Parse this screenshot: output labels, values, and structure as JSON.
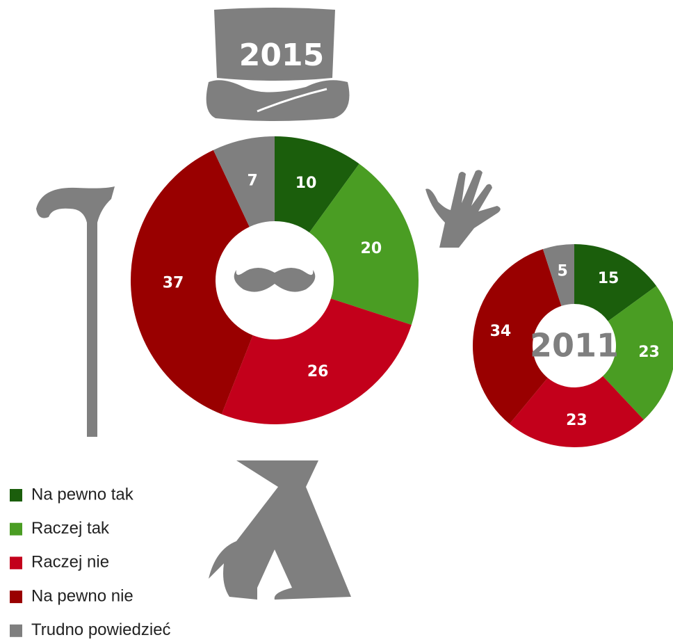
{
  "chart_data": [
    {
      "type": "donut",
      "title": "2015",
      "categories": [
        "Na pewno tak",
        "Raczej tak",
        "Raczej nie",
        "Na pewno nie",
        "Trudno powiedzieć"
      ],
      "colors": [
        "#1b5e0c",
        "#4a9d23",
        "#c3001b",
        "#990000",
        "#7f7f7f"
      ],
      "values": [
        10,
        20,
        26,
        37,
        7
      ]
    },
    {
      "type": "donut",
      "title": "2011",
      "values": [
        15,
        23,
        23,
        34,
        5
      ]
    }
  ]
}
